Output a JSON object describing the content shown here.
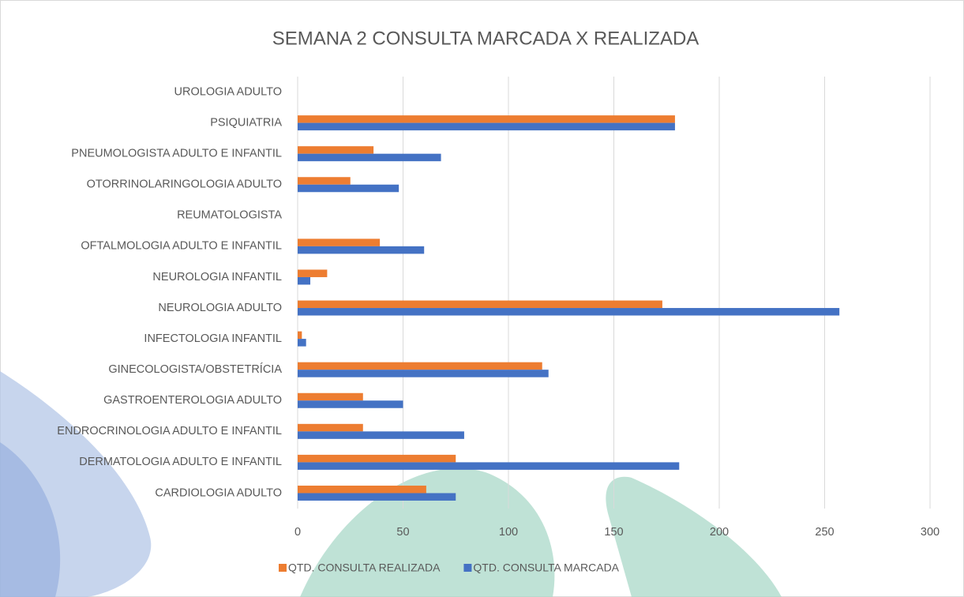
{
  "chart_data": {
    "type": "hbar",
    "title": "SEMANA 2 CONSULTA MARCADA X REALIZADA",
    "categories": [
      "UROLOGIA ADULTO",
      "PSIQUIATRIA",
      "PNEUMOLOGISTA ADULTO E INFANTIL",
      "OTORRINOLARINGOLOGIA ADULTO",
      "REUMATOLOGISTA",
      "OFTALMOLOGIA ADULTO E INFANTIL",
      "NEUROLOGIA INFANTIL",
      "NEUROLOGIA ADULTO",
      "INFECTOLOGIA INFANTIL",
      "GINECOLOGISTA/OBSTETRÍCIA",
      "GASTROENTEROLOGIA ADULTO",
      "ENDROCRINOLOGIA ADULTO E INFANTIL",
      "DERMATOLOGIA ADULTO E INFANTIL",
      "CARDIOLOGIA ADULTO"
    ],
    "series": [
      {
        "name": "QTD. CONSULTA REALIZADA",
        "color": "#ed7d31",
        "values": [
          0,
          179,
          36,
          25,
          0,
          39,
          14,
          173,
          2,
          116,
          31,
          31,
          75,
          61
        ]
      },
      {
        "name": "QTD. CONSULTA MARCADA",
        "color": "#4472c4",
        "values": [
          0,
          179,
          68,
          48,
          0,
          60,
          6,
          257,
          4,
          119,
          50,
          79,
          181,
          75
        ]
      }
    ],
    "xlim": [
      0,
      300
    ],
    "xticks": [
      0,
      50,
      100,
      150,
      200,
      250,
      300
    ],
    "grid": true,
    "legend": "bottom"
  }
}
